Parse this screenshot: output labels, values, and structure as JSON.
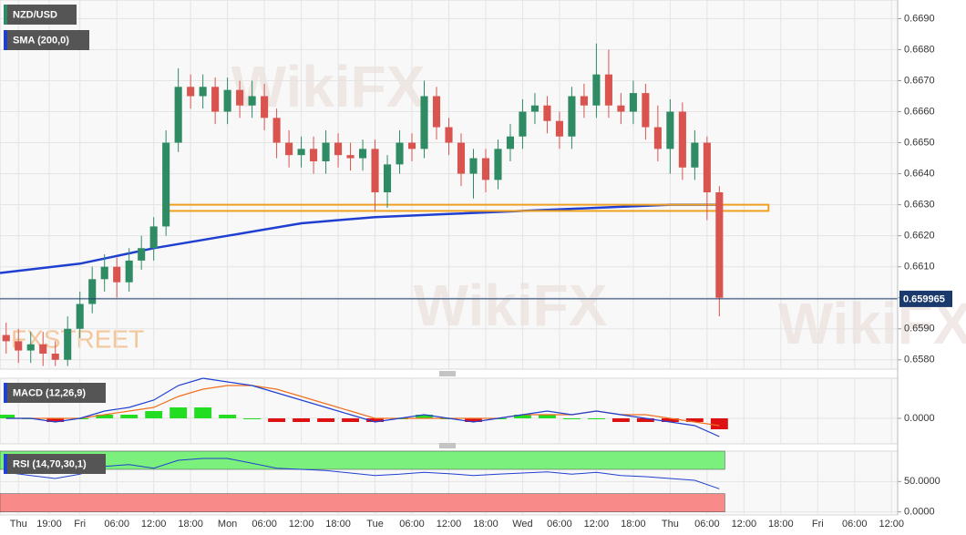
{
  "chart_data": [
    {
      "type": "candlestick",
      "title": "NZD/USD",
      "x": [
        -12,
        -10,
        -8,
        -6,
        -4,
        -2,
        0,
        2,
        4,
        6,
        8,
        10,
        12,
        14,
        16,
        18,
        20,
        22,
        24,
        26,
        28,
        30,
        32,
        34,
        36,
        38,
        40,
        42,
        44,
        46,
        48,
        50,
        52,
        54,
        56,
        58,
        60,
        62,
        64,
        66,
        68,
        70,
        72,
        74,
        76,
        78,
        80,
        82,
        84,
        86,
        88,
        90,
        92,
        94,
        96,
        98,
        100,
        102,
        104
      ],
      "open": [
        0.6588,
        0.6586,
        0.6583,
        0.6585,
        0.6582,
        0.658,
        0.659,
        0.6598,
        0.6606,
        0.661,
        0.6605,
        0.6612,
        0.6616,
        0.6623,
        0.665,
        0.6668,
        0.6665,
        0.6668,
        0.666,
        0.6667,
        0.6662,
        0.6665,
        0.6658,
        0.665,
        0.6646,
        0.6648,
        0.6644,
        0.665,
        0.6646,
        0.6645,
        0.6648,
        0.6634,
        0.6643,
        0.665,
        0.6648,
        0.6665,
        0.6655,
        0.665,
        0.664,
        0.6645,
        0.6638,
        0.6648,
        0.6652,
        0.666,
        0.6662,
        0.6657,
        0.6652,
        0.6665,
        0.6662,
        0.6672,
        0.6662,
        0.666,
        0.6666,
        0.6655,
        0.6648,
        0.666,
        0.6642,
        0.665,
        0.6634
      ],
      "high": [
        0.6592,
        0.659,
        0.6589,
        0.6589,
        0.6586,
        0.6594,
        0.6602,
        0.661,
        0.6614,
        0.6613,
        0.6616,
        0.662,
        0.6626,
        0.6654,
        0.6674,
        0.6672,
        0.6672,
        0.6671,
        0.6671,
        0.667,
        0.667,
        0.6669,
        0.6661,
        0.6654,
        0.6652,
        0.6652,
        0.6654,
        0.6653,
        0.665,
        0.6651,
        0.6651,
        0.6646,
        0.6654,
        0.6653,
        0.667,
        0.6668,
        0.6658,
        0.6653,
        0.6648,
        0.6648,
        0.6651,
        0.6656,
        0.6664,
        0.6666,
        0.6665,
        0.666,
        0.6668,
        0.6669,
        0.6682,
        0.668,
        0.6666,
        0.667,
        0.6669,
        0.6662,
        0.6664,
        0.6663,
        0.6654,
        0.6652,
        0.6636
      ],
      "low": [
        0.6582,
        0.6579,
        0.6579,
        0.6578,
        0.6578,
        0.6578,
        0.6587,
        0.6595,
        0.6602,
        0.66,
        0.6602,
        0.6609,
        0.6612,
        0.662,
        0.6647,
        0.6661,
        0.6661,
        0.6656,
        0.6656,
        0.6658,
        0.6658,
        0.6654,
        0.6645,
        0.6642,
        0.6642,
        0.664,
        0.664,
        0.6642,
        0.6641,
        0.6641,
        0.6628,
        0.6629,
        0.664,
        0.6644,
        0.6645,
        0.6651,
        0.6646,
        0.6636,
        0.6632,
        0.6634,
        0.6635,
        0.6644,
        0.6648,
        0.6656,
        0.6653,
        0.6648,
        0.6648,
        0.6658,
        0.6658,
        0.6658,
        0.6656,
        0.6656,
        0.6651,
        0.6644,
        0.664,
        0.6638,
        0.6638,
        0.6625,
        0.6594
      ],
      "close": [
        0.6586,
        0.6583,
        0.6585,
        0.6582,
        0.658,
        0.659,
        0.6598,
        0.6606,
        0.661,
        0.6605,
        0.6612,
        0.6616,
        0.6623,
        0.665,
        0.6668,
        0.6665,
        0.6668,
        0.666,
        0.6667,
        0.6662,
        0.6665,
        0.6658,
        0.665,
        0.6646,
        0.6648,
        0.6644,
        0.665,
        0.6646,
        0.6645,
        0.6648,
        0.6634,
        0.6643,
        0.665,
        0.6648,
        0.6665,
        0.6655,
        0.665,
        0.664,
        0.6645,
        0.6638,
        0.6648,
        0.6652,
        0.666,
        0.6662,
        0.6657,
        0.6652,
        0.6665,
        0.6662,
        0.6672,
        0.6662,
        0.666,
        0.6666,
        0.6655,
        0.6648,
        0.666,
        0.6642,
        0.665,
        0.6634,
        0.66
      ],
      "up_color": "#2e8b63",
      "down_color": "#d9534f",
      "overlays": [
        {
          "name": "SMA (200,0)",
          "color": "#1f3fd0",
          "x": [
            -13,
            0,
            12,
            24,
            36,
            48,
            60,
            72,
            84,
            96,
            104
          ],
          "values": [
            0.6608,
            0.6611,
            0.6616,
            0.662,
            0.6624,
            0.6626,
            0.6627,
            0.6628,
            0.6629,
            0.663,
            0.663
          ]
        }
      ],
      "zone": {
        "x": [
          14,
          112
        ],
        "y": [
          0.6628,
          0.663
        ],
        "color": "#f0a020"
      },
      "current_price": 0.659965,
      "xlim": [
        -13,
        133
      ],
      "ylim": [
        0.6577,
        0.6696
      ],
      "yticks": [
        {
          "value": 0.669,
          "label": "0.6690"
        },
        {
          "value": 0.668,
          "label": "0.6680"
        },
        {
          "value": 0.667,
          "label": "0.6670"
        },
        {
          "value": 0.666,
          "label": "0.6660"
        },
        {
          "value": 0.665,
          "label": "0.6650"
        },
        {
          "value": 0.664,
          "label": "0.6640"
        },
        {
          "value": 0.663,
          "label": "0.6630"
        },
        {
          "value": 0.662,
          "label": "0.6620"
        },
        {
          "value": 0.661,
          "label": "0.6610"
        },
        {
          "value": 0.66,
          "label": "0.6600"
        },
        {
          "value": 0.659,
          "label": "0.6590"
        },
        {
          "value": 0.658,
          "label": "0.6580"
        }
      ],
      "xticks": [
        {
          "value": -10,
          "label": "Thu"
        },
        {
          "value": -5,
          "label": "19:00"
        },
        {
          "value": 0,
          "label": "Fri"
        },
        {
          "value": 6,
          "label": "06:00"
        },
        {
          "value": 12,
          "label": "12:00"
        },
        {
          "value": 18,
          "label": "18:00"
        },
        {
          "value": 24,
          "label": "Mon"
        },
        {
          "value": 30,
          "label": "06:00"
        },
        {
          "value": 36,
          "label": "12:00"
        },
        {
          "value": 42,
          "label": "18:00"
        },
        {
          "value": 48,
          "label": "Tue"
        },
        {
          "value": 54,
          "label": "06:00"
        },
        {
          "value": 60,
          "label": "12:00"
        },
        {
          "value": 66,
          "label": "18:00"
        },
        {
          "value": 72,
          "label": "Wed"
        },
        {
          "value": 78,
          "label": "06:00"
        },
        {
          "value": 84,
          "label": "12:00"
        },
        {
          "value": 90,
          "label": "18:00"
        },
        {
          "value": 96,
          "label": "Thu"
        },
        {
          "value": 102,
          "label": "06:00"
        },
        {
          "value": 108,
          "label": "12:00"
        },
        {
          "value": 114,
          "label": "18:00"
        },
        {
          "value": 120,
          "label": "Fri"
        },
        {
          "value": 126,
          "label": "06:00"
        },
        {
          "value": 132,
          "label": "12:00"
        }
      ],
      "grid": true,
      "watermarks": [
        "WikiFX",
        "FXSTREET"
      ]
    },
    {
      "type": "macd",
      "title": "MACD (12,26,9)",
      "x": [
        -12,
        -8,
        -4,
        0,
        4,
        8,
        12,
        16,
        20,
        24,
        28,
        32,
        36,
        40,
        44,
        48,
        52,
        56,
        60,
        64,
        68,
        72,
        76,
        80,
        84,
        88,
        92,
        96,
        100,
        104
      ],
      "macd": {
        "color": "#2040d0",
        "values": [
          0,
          0,
          -0.0001,
          0,
          0.0002,
          0.0003,
          0.0005,
          0.0009,
          0.0011,
          0.001,
          0.0009,
          0.0007,
          0.0005,
          0.0003,
          0.0001,
          -0.0001,
          0,
          0.0001,
          0,
          -0.0001,
          0,
          0.0001,
          0.0002,
          0.0001,
          0.0002,
          0.0001,
          0,
          -0.0001,
          -0.0002,
          -0.0005
        ]
      },
      "signal": {
        "color": "#f07020",
        "values": [
          0,
          0,
          0,
          0,
          0.0001,
          0.0002,
          0.0003,
          0.0006,
          0.0008,
          0.0009,
          0.0009,
          0.0008,
          0.0006,
          0.0004,
          0.0002,
          0,
          0,
          0,
          0,
          0,
          0,
          0.0001,
          0.0001,
          0.0001,
          0.0002,
          0.0001,
          0.0001,
          0,
          -0.0001,
          -0.0002
        ]
      },
      "histogram": {
        "up_color": "#22dd22",
        "down_color": "#dd1111",
        "values": [
          0.0001,
          0,
          -0.0001,
          0,
          0.0001,
          0.0001,
          0.0002,
          0.0003,
          0.0003,
          0.0001,
          0,
          -0.0001,
          -0.0001,
          -0.0001,
          -0.0001,
          -0.0001,
          0,
          0.0001,
          0,
          -0.0001,
          0,
          0.0001,
          0.0001,
          0,
          0,
          -0.0001,
          -0.0001,
          -0.0001,
          -0.0001,
          -0.0003
        ]
      },
      "ylim": [
        -0.0007,
        0.0011
      ],
      "yticks": [
        {
          "value": 0,
          "label": "0.0000"
        }
      ]
    },
    {
      "type": "rsi",
      "title": "RSI (14,70,30,1)",
      "x": [
        -12,
        -8,
        -4,
        0,
        4,
        8,
        12,
        16,
        20,
        24,
        28,
        32,
        36,
        40,
        44,
        48,
        52,
        56,
        60,
        64,
        68,
        72,
        76,
        80,
        84,
        88,
        92,
        96,
        100,
        104
      ],
      "values": [
        65,
        60,
        55,
        62,
        75,
        78,
        72,
        85,
        88,
        88,
        80,
        72,
        70,
        68,
        64,
        60,
        62,
        65,
        63,
        60,
        62,
        64,
        66,
        62,
        65,
        60,
        58,
        55,
        52,
        38
      ],
      "color": "#2040d0",
      "bands": [
        {
          "from": 70,
          "to": 100,
          "color": "#7cf07c"
        },
        {
          "from": 0,
          "to": 30,
          "color": "#f88a8a"
        }
      ],
      "ylim": [
        -5,
        100
      ],
      "yticks": [
        {
          "value": 50,
          "label": "50.0000"
        },
        {
          "value": 0,
          "label": "0.0000"
        }
      ]
    }
  ]
}
